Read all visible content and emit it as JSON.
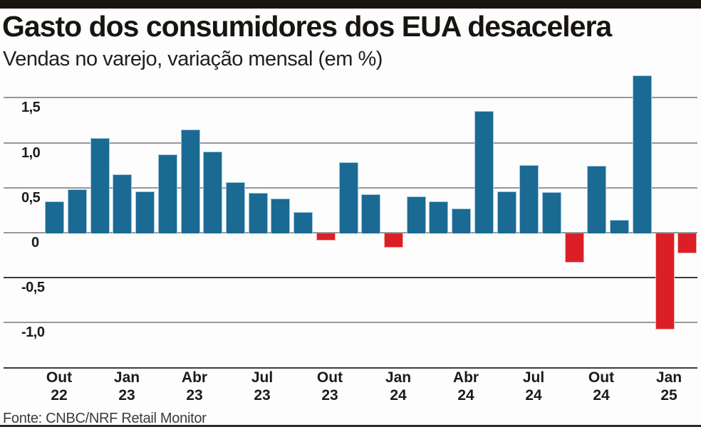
{
  "header": {
    "title": "Gasto dos consumidores dos EUA desacelera",
    "subtitle": "Vendas no varejo, variação mensal (em %)"
  },
  "source": "Fonte: CNBC/NRF Retail Monitor",
  "colors": {
    "positive_bar": "#1a6a94",
    "negative_bar": "#dc1f26",
    "gridline": "#979797",
    "gridline_dark": "#3c3c3c",
    "top_bar": "#18140f",
    "text": "#1c1b1a"
  },
  "chart_data": {
    "type": "bar",
    "title": "Gasto dos consumidores dos EUA desacelera",
    "subtitle": "Vendas no varejo, variação mensal (em %)",
    "unit": "%",
    "ylim": [
      -1.5,
      1.8
    ],
    "grid": true,
    "points": [
      {
        "label": "Out 22",
        "value": 0.35
      },
      {
        "label": "Nov 22",
        "value": 0.48
      },
      {
        "label": "Dez 22",
        "value": 1.05
      },
      {
        "label": "Jan 23",
        "value": 0.65
      },
      {
        "label": "Fev 23",
        "value": 0.46
      },
      {
        "label": "Mar 23",
        "value": 0.87
      },
      {
        "label": "Abr 23",
        "value": 1.15
      },
      {
        "label": "Mai 23",
        "value": 0.9
      },
      {
        "label": "Jun 23",
        "value": 0.56
      },
      {
        "label": "Jul 23",
        "value": 0.44
      },
      {
        "label": "Ago 23",
        "value": 0.38
      },
      {
        "label": "Set 23",
        "value": 0.23
      },
      {
        "label": "Out 23",
        "value": -0.07
      },
      {
        "label": "Nov 23",
        "value": 0.78
      },
      {
        "label": "Dez 23",
        "value": 0.43
      },
      {
        "label": "Jan 24",
        "value": -0.15
      },
      {
        "label": "Fev 24",
        "value": 0.4
      },
      {
        "label": "Mar 24",
        "value": 0.35
      },
      {
        "label": "Abr 24",
        "value": 0.27
      },
      {
        "label": "Mai 24",
        "value": 1.35
      },
      {
        "label": "Jun 24",
        "value": 0.46
      },
      {
        "label": "Jul 24",
        "value": 0.75
      },
      {
        "label": "Ago 24",
        "value": 0.45
      },
      {
        "label": "Set 24",
        "value": -0.32
      },
      {
        "label": "Out 24",
        "value": 0.74
      },
      {
        "label": "Nov 24",
        "value": 0.14
      },
      {
        "label": "Dez 24",
        "value": 1.75
      },
      {
        "label": "Jan 25",
        "value": -1.06
      },
      {
        "label": "Fev 25",
        "value": -0.21
      }
    ],
    "y_gridlines": [
      {
        "value": 1.5,
        "label": "1,5",
        "dark": false
      },
      {
        "value": 1.0,
        "label": "1,0",
        "dark": false
      },
      {
        "value": 0.5,
        "label": "0,5",
        "dark": false
      },
      {
        "value": 0,
        "label": "0",
        "dark": false
      },
      {
        "value": -0.5,
        "label": "-0,5",
        "dark": true
      },
      {
        "value": -1.0,
        "label": "-1,0",
        "dark": false
      },
      {
        "value": -1.5,
        "label": "",
        "dark": true
      }
    ],
    "x_ticks": [
      {
        "index": 0,
        "line1": "Out",
        "line2": "22"
      },
      {
        "index": 3,
        "line1": "Jan",
        "line2": "23"
      },
      {
        "index": 6,
        "line1": "Abr",
        "line2": "23"
      },
      {
        "index": 9,
        "line1": "Jul",
        "line2": "23"
      },
      {
        "index": 12,
        "line1": "Out",
        "line2": "23"
      },
      {
        "index": 15,
        "line1": "Jan",
        "line2": "24"
      },
      {
        "index": 18,
        "line1": "Abr",
        "line2": "24"
      },
      {
        "index": 21,
        "line1": "Jul",
        "line2": "24"
      },
      {
        "index": 24,
        "line1": "Out",
        "line2": "24"
      },
      {
        "index": 27,
        "line1": "Jan",
        "line2": "25"
      }
    ],
    "legend": null
  }
}
